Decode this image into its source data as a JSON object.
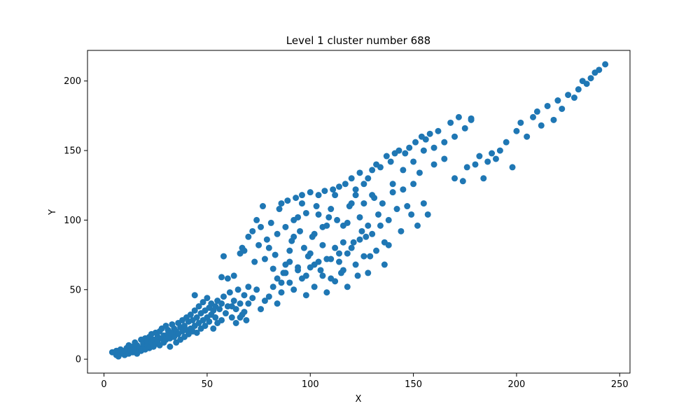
{
  "chart_data": {
    "type": "scatter",
    "title": "Level 1 cluster number 688",
    "xlabel": "X",
    "ylabel": "Y",
    "xlim": [
      -8,
      255
    ],
    "ylim": [
      -10,
      222
    ],
    "x_ticks": [
      0,
      50,
      100,
      150,
      200,
      250
    ],
    "y_ticks": [
      0,
      50,
      100,
      150,
      200
    ],
    "grid": false,
    "marker_color": "#1f77b4",
    "series": [
      {
        "points": [
          [
            4,
            5
          ],
          [
            6,
            3
          ],
          [
            6,
            6
          ],
          [
            7,
            2
          ],
          [
            8,
            4
          ],
          [
            8,
            7
          ],
          [
            9,
            5
          ],
          [
            10,
            3
          ],
          [
            10,
            6
          ],
          [
            11,
            8
          ],
          [
            12,
            4
          ],
          [
            12,
            10
          ],
          [
            13,
            6
          ],
          [
            14,
            5
          ],
          [
            14,
            9
          ],
          [
            15,
            7
          ],
          [
            15,
            12
          ],
          [
            16,
            4
          ],
          [
            16,
            10
          ],
          [
            17,
            8
          ],
          [
            18,
            6
          ],
          [
            18,
            14
          ],
          [
            19,
            9
          ],
          [
            19,
            11
          ],
          [
            20,
            7
          ],
          [
            20,
            15
          ],
          [
            21,
            10
          ],
          [
            21,
            13
          ],
          [
            22,
            8
          ],
          [
            22,
            16
          ],
          [
            23,
            12
          ],
          [
            23,
            18
          ],
          [
            24,
            9
          ],
          [
            24,
            14
          ],
          [
            25,
            11
          ],
          [
            25,
            19
          ],
          [
            26,
            13
          ],
          [
            26,
            16
          ],
          [
            27,
            10
          ],
          [
            27,
            20
          ],
          [
            28,
            15
          ],
          [
            28,
            22
          ],
          [
            29,
            12
          ],
          [
            29,
            17
          ],
          [
            30,
            14
          ],
          [
            30,
            24
          ],
          [
            31,
            18
          ],
          [
            31,
            21
          ],
          [
            32,
            9
          ],
          [
            32,
            15
          ],
          [
            33,
            19
          ],
          [
            33,
            25
          ],
          [
            34,
            16
          ],
          [
            34,
            22
          ],
          [
            35,
            12
          ],
          [
            35,
            20
          ],
          [
            36,
            18
          ],
          [
            36,
            26
          ],
          [
            37,
            14
          ],
          [
            37,
            23
          ],
          [
            38,
            20
          ],
          [
            38,
            28
          ],
          [
            39,
            16
          ],
          [
            39,
            24
          ],
          [
            40,
            21
          ],
          [
            40,
            30
          ],
          [
            41,
            18
          ],
          [
            41,
            27
          ],
          [
            42,
            22
          ],
          [
            42,
            32
          ],
          [
            43,
            20
          ],
          [
            43,
            28
          ],
          [
            44,
            24
          ],
          [
            44,
            35
          ],
          [
            45,
            19
          ],
          [
            45,
            30
          ],
          [
            46,
            26
          ],
          [
            46,
            38
          ],
          [
            47,
            22
          ],
          [
            47,
            33
          ],
          [
            48,
            28
          ],
          [
            48,
            41
          ],
          [
            49,
            24
          ],
          [
            49,
            35
          ],
          [
            50,
            30
          ],
          [
            50,
            44
          ],
          [
            51,
            27
          ],
          [
            51,
            37
          ],
          [
            52,
            32
          ],
          [
            52,
            40
          ],
          [
            53,
            22
          ],
          [
            53,
            35
          ],
          [
            54,
            38
          ],
          [
            54,
            30
          ],
          [
            55,
            42
          ],
          [
            55,
            26
          ],
          [
            56,
            36
          ],
          [
            57,
            40
          ],
          [
            57,
            28
          ],
          [
            58,
            45
          ],
          [
            59,
            33
          ],
          [
            60,
            38
          ],
          [
            61,
            48
          ],
          [
            62,
            30
          ],
          [
            63,
            42
          ],
          [
            64,
            36
          ],
          [
            65,
            50
          ],
          [
            66,
            40
          ],
          [
            67,
            32
          ],
          [
            68,
            46
          ],
          [
            69,
            28
          ],
          [
            70,
            52
          ],
          [
            44,
            46
          ],
          [
            58,
            74
          ],
          [
            57,
            59
          ],
          [
            63,
            60
          ],
          [
            67,
            80
          ],
          [
            60,
            58
          ],
          [
            66,
            76
          ],
          [
            68,
            78
          ],
          [
            70,
            88
          ],
          [
            72,
            92
          ],
          [
            73,
            70
          ],
          [
            74,
            100
          ],
          [
            75,
            82
          ],
          [
            76,
            95
          ],
          [
            77,
            110
          ],
          [
            78,
            72
          ],
          [
            79,
            86
          ],
          [
            80,
            80
          ],
          [
            81,
            98
          ],
          [
            82,
            65
          ],
          [
            83,
            75
          ],
          [
            84,
            90
          ],
          [
            85,
            108
          ],
          [
            86,
            112
          ],
          [
            87,
            62
          ],
          [
            88,
            95
          ],
          [
            89,
            114
          ],
          [
            90,
            70
          ],
          [
            91,
            85
          ],
          [
            92,
            100
          ],
          [
            93,
            116
          ],
          [
            94,
            66
          ],
          [
            95,
            92
          ],
          [
            96,
            118
          ],
          [
            97,
            80
          ],
          [
            98,
            105
          ],
          [
            99,
            74
          ],
          [
            100,
            120
          ],
          [
            101,
            88
          ],
          [
            102,
            68
          ],
          [
            103,
            110
          ],
          [
            104,
            118
          ],
          [
            105,
            64
          ],
          [
            106,
            95
          ],
          [
            107,
            121
          ],
          [
            108,
            72
          ],
          [
            109,
            102
          ],
          [
            110,
            58
          ],
          [
            111,
            122
          ],
          [
            112,
            80
          ],
          [
            113,
            100
          ],
          [
            114,
            124
          ],
          [
            115,
            62
          ],
          [
            116,
            96
          ],
          [
            117,
            126
          ],
          [
            118,
            76
          ],
          [
            119,
            110
          ],
          [
            120,
            130
          ],
          [
            121,
            84
          ],
          [
            122,
            118
          ],
          [
            123,
            60
          ],
          [
            124,
            134
          ],
          [
            125,
            92
          ],
          [
            126,
            126
          ],
          [
            127,
            88
          ],
          [
            128,
            130
          ],
          [
            129,
            74
          ],
          [
            130,
            136
          ],
          [
            131,
            116
          ],
          [
            132,
            140
          ],
          [
            133,
            104
          ],
          [
            134,
            138
          ],
          [
            135,
            112
          ],
          [
            136,
            68
          ],
          [
            137,
            146
          ],
          [
            138,
            82
          ],
          [
            139,
            142
          ],
          [
            140,
            120
          ],
          [
            141,
            148
          ],
          [
            142,
            108
          ],
          [
            143,
            150
          ],
          [
            144,
            92
          ],
          [
            145,
            122
          ],
          [
            146,
            148
          ],
          [
            147,
            110
          ],
          [
            148,
            152
          ],
          [
            149,
            104
          ],
          [
            150,
            126
          ],
          [
            151,
            156
          ],
          [
            152,
            96
          ],
          [
            153,
            134
          ],
          [
            154,
            160
          ],
          [
            155,
            112
          ],
          [
            156,
            158
          ],
          [
            157,
            104
          ],
          [
            158,
            162
          ],
          [
            160,
            140
          ],
          [
            162,
            164
          ],
          [
            165,
            144
          ],
          [
            168,
            170
          ],
          [
            170,
            130
          ],
          [
            172,
            174
          ],
          [
            174,
            128
          ],
          [
            176,
            138
          ],
          [
            178,
            172
          ],
          [
            180,
            140
          ],
          [
            182,
            146
          ],
          [
            184,
            130
          ],
          [
            186,
            142
          ],
          [
            188,
            148
          ],
          [
            190,
            144
          ],
          [
            192,
            150
          ],
          [
            195,
            156
          ],
          [
            198,
            138
          ],
          [
            200,
            164
          ],
          [
            202,
            170
          ],
          [
            205,
            160
          ],
          [
            208,
            174
          ],
          [
            210,
            178
          ],
          [
            212,
            168
          ],
          [
            215,
            182
          ],
          [
            218,
            172
          ],
          [
            220,
            186
          ],
          [
            222,
            180
          ],
          [
            225,
            190
          ],
          [
            228,
            188
          ],
          [
            230,
            194
          ],
          [
            232,
            200
          ],
          [
            234,
            198
          ],
          [
            236,
            202
          ],
          [
            238,
            206
          ],
          [
            240,
            208
          ],
          [
            243,
            212
          ],
          [
            80,
            45
          ],
          [
            82,
            52
          ],
          [
            84,
            58
          ],
          [
            86,
            48
          ],
          [
            88,
            62
          ],
          [
            90,
            55
          ],
          [
            92,
            50
          ],
          [
            94,
            64
          ],
          [
            96,
            58
          ],
          [
            98,
            46
          ],
          [
            100,
            66
          ],
          [
            102,
            52
          ],
          [
            104,
            70
          ],
          [
            106,
            60
          ],
          [
            108,
            48
          ],
          [
            110,
            72
          ],
          [
            112,
            56
          ],
          [
            114,
            76
          ],
          [
            116,
            64
          ],
          [
            118,
            52
          ],
          [
            120,
            80
          ],
          [
            122,
            68
          ],
          [
            124,
            86
          ],
          [
            126,
            74
          ],
          [
            128,
            62
          ],
          [
            130,
            90
          ],
          [
            132,
            78
          ],
          [
            134,
            96
          ],
          [
            136,
            84
          ],
          [
            138,
            100
          ],
          [
            76,
            36
          ],
          [
            78,
            42
          ],
          [
            74,
            50
          ],
          [
            72,
            44
          ],
          [
            70,
            40
          ],
          [
            68,
            34
          ],
          [
            66,
            30
          ],
          [
            64,
            26
          ],
          [
            62,
            38
          ],
          [
            84,
            40
          ],
          [
            86,
            55
          ],
          [
            88,
            68
          ],
          [
            90,
            78
          ],
          [
            92,
            88
          ],
          [
            94,
            102
          ],
          [
            96,
            112
          ],
          [
            98,
            60
          ],
          [
            100,
            76
          ],
          [
            102,
            90
          ],
          [
            104,
            104
          ],
          [
            106,
            82
          ],
          [
            108,
            96
          ],
          [
            110,
            108
          ],
          [
            112,
            118
          ],
          [
            114,
            70
          ],
          [
            116,
            84
          ],
          [
            118,
            98
          ],
          [
            120,
            112
          ],
          [
            122,
            122
          ],
          [
            124,
            102
          ],
          [
            126,
            112
          ],
          [
            128,
            96
          ],
          [
            130,
            118
          ],
          [
            140,
            126
          ],
          [
            145,
            136
          ],
          [
            150,
            142
          ],
          [
            155,
            150
          ],
          [
            160,
            152
          ],
          [
            165,
            156
          ],
          [
            170,
            160
          ],
          [
            175,
            166
          ],
          [
            178,
            173
          ]
        ]
      }
    ]
  }
}
